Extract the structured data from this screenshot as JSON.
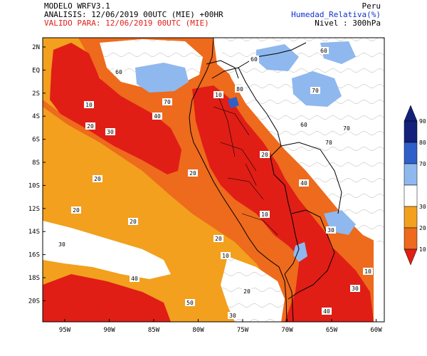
{
  "header": {
    "model": "MODELO WRFV3.1",
    "analysis": "ANALISIS: 12/06/2019 00UTC (MIE) +00HR",
    "valid": "VALIDO PARA: 12/06/2019 00UTC (MIE)",
    "region": "Peru",
    "variable": "Humedad_Relativa(%)",
    "level": "Nivel : 300hPa"
  },
  "axes": {
    "lat_labels": [
      "2N",
      "EQ",
      "2S",
      "4S",
      "6S",
      "8S",
      "10S",
      "12S",
      "14S",
      "16S",
      "18S",
      "20S"
    ],
    "lon_labels": [
      "95W",
      "90W",
      "85W",
      "80W",
      "75W",
      "70W",
      "65W",
      "60W"
    ]
  },
  "colorbar": {
    "ticks": [
      "90",
      "80",
      "70",
      "30",
      "20",
      "10"
    ],
    "colors": {
      "c90": "#14207a",
      "c80": "#2f5fc8",
      "c70": "#8fb8ee",
      "c30": "#f2a01e",
      "c20": "#ee6a1c",
      "c10": "#e01e16"
    }
  },
  "contour_labels": {
    "l10": "10",
    "l20": "20",
    "l30": "30",
    "l40": "40",
    "l50": "50",
    "l60": "60",
    "l70": "70",
    "l80": "80"
  }
}
